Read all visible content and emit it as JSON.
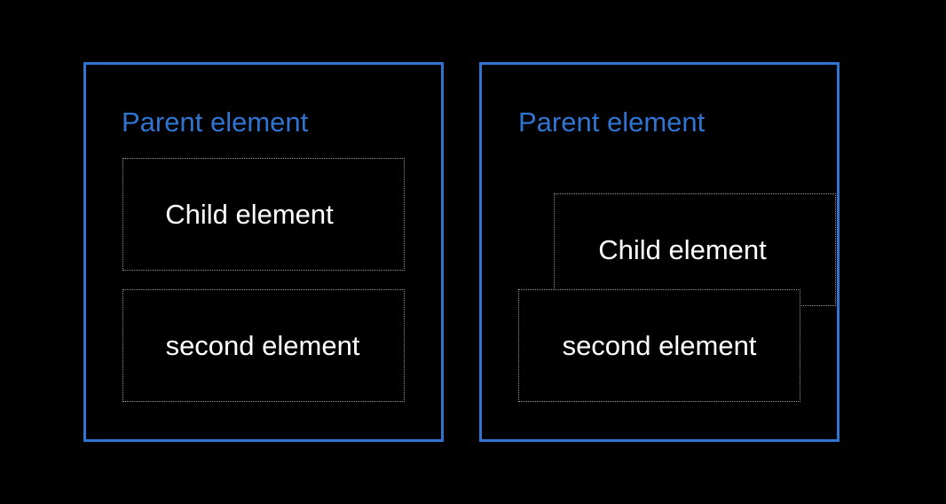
{
  "colors": {
    "background": "#000000",
    "parent_border": "#2f74d0",
    "parent_label": "#2f74d0",
    "child_border": "#9a9a9a",
    "child_label": "#ffffff"
  },
  "left_diagram": {
    "parent_label": "Parent element",
    "child_label": "Child element",
    "second_label": "second element"
  },
  "right_diagram": {
    "parent_label": "Parent element",
    "child_label": "Child element",
    "second_label": "second element"
  }
}
